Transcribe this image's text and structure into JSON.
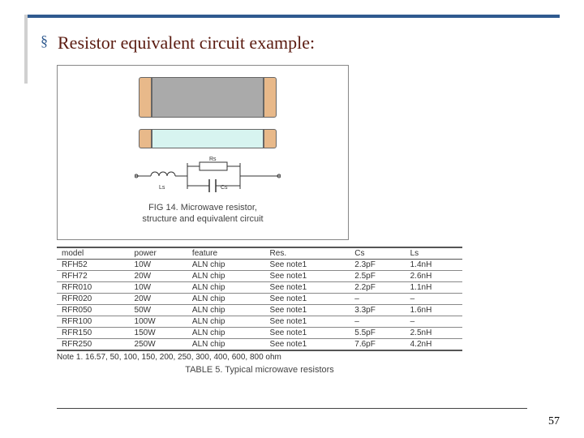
{
  "title": "Resistor equivalent circuit example:",
  "page_number": "57",
  "figure": {
    "caption_line1": "FIG 14.   Microwave resistor,",
    "caption_line2": "structure and equivalent circuit",
    "circuit_labels": {
      "ls": "Ls",
      "rs": "Rs",
      "cs": "Cs"
    },
    "colors": {
      "cap": "#e8b98a",
      "body_top": "#aaaaaa",
      "body_side": "#d7f4f0",
      "border": "#666666"
    }
  },
  "table": {
    "columns": [
      "model",
      "power",
      "feature",
      "Res.",
      "Cs",
      "Ls"
    ],
    "rows": [
      [
        "RFH52",
        "10W",
        "ALN chip",
        "See note1",
        "2.3pF",
        "1.4nH"
      ],
      [
        "RFH72",
        "20W",
        "ALN chip",
        "See note1",
        "2.5pF",
        "2.6nH"
      ],
      [
        "RFR010",
        "10W",
        "ALN chip",
        "See note1",
        "2.2pF",
        "1.1nH"
      ],
      [
        "RFR020",
        "20W",
        "ALN chip",
        "See note1",
        "–",
        "–"
      ],
      [
        "RFR050",
        "50W",
        "ALN chip",
        "See note1",
        "3.3pF",
        "1.6nH"
      ],
      [
        "RFR100",
        "100W",
        "ALN chip",
        "See note1",
        "–",
        "–"
      ],
      [
        "RFR150",
        "150W",
        "ALN chip",
        "See note1",
        "5.5pF",
        "2.5nH"
      ],
      [
        "RFR250",
        "250W",
        "ALN chip",
        "See note1",
        "7.6pF",
        "4.2nH"
      ]
    ],
    "note": "Note 1.      16.57, 50, 100, 150, 200, 250, 300, 400, 600, 800 ohm",
    "caption": "TABLE 5.   Typical microwave resistors"
  },
  "style": {
    "accent_color": "#2f5a8f",
    "title_color": "#5a1a0f",
    "title_fontsize": 22,
    "table_fontsize": 10,
    "rule_color": "#444444"
  }
}
